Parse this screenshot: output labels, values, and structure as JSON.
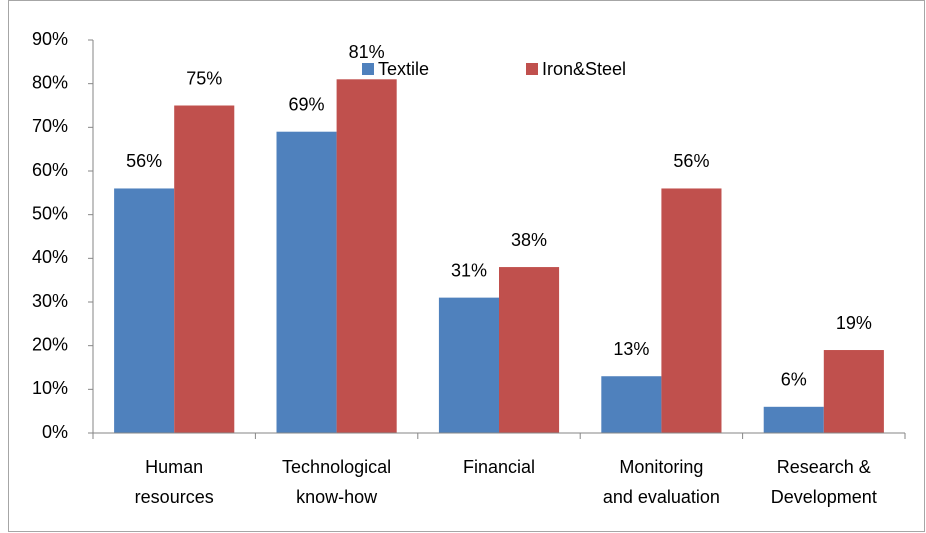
{
  "chart_data": {
    "type": "bar",
    "categories": [
      [
        "Human",
        "resources"
      ],
      [
        "Technological",
        "know-how"
      ],
      [
        "Financial"
      ],
      [
        "Monitoring",
        "and evaluation"
      ],
      [
        "Research &",
        "Development"
      ]
    ],
    "series": [
      {
        "name": "Textile",
        "color": "#4f81bd",
        "values": [
          56,
          69,
          31,
          13,
          6
        ],
        "value_labels": [
          "56%",
          "69%",
          "31%",
          "13%",
          "6%"
        ]
      },
      {
        "name": "Iron&Steel",
        "color": "#c0504d",
        "values": [
          75,
          81,
          38,
          56,
          19
        ],
        "value_labels": [
          "75%",
          "81%",
          "38%",
          "56%",
          "19%"
        ]
      }
    ],
    "ylim": [
      0,
      90
    ],
    "yticks": [
      {
        "value": 0,
        "label": "0%"
      },
      {
        "value": 10,
        "label": "10%"
      },
      {
        "value": 20,
        "label": "20%"
      },
      {
        "value": 30,
        "label": "30%"
      },
      {
        "value": 40,
        "label": "40%"
      },
      {
        "value": 50,
        "label": "50%"
      },
      {
        "value": 60,
        "label": "60%"
      },
      {
        "value": 70,
        "label": "70%"
      },
      {
        "value": 80,
        "label": "80%"
      },
      {
        "value": 90,
        "label": "90%"
      }
    ],
    "legend": "top-right"
  }
}
